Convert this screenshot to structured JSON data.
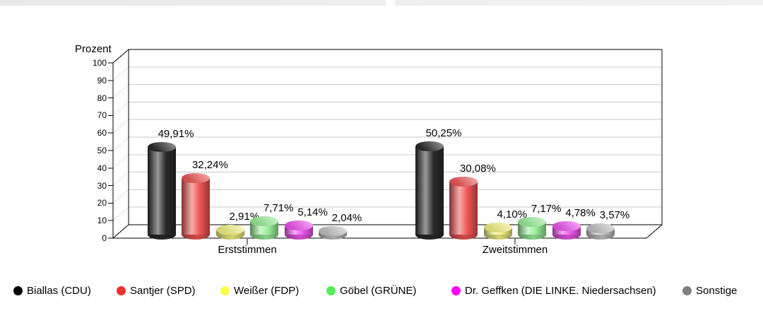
{
  "window": {
    "top_strip": {
      "visible": true
    }
  },
  "chart_data": {
    "type": "bar",
    "style": "3d-cylinder-grouped",
    "title": "",
    "ylabel": "Prozent",
    "xlabel": "",
    "ylim": [
      0,
      100
    ],
    "ytick_step": 10,
    "yticks": [
      "0",
      "10",
      "20",
      "30",
      "40",
      "50",
      "60",
      "70",
      "80",
      "90",
      "100"
    ],
    "grid": true,
    "legend_position": "bottom",
    "categories": [
      "Erststimmen",
      "Zweitstimmen"
    ],
    "series": [
      {
        "name": "Biallas (CDU)",
        "legend_color": "#000000",
        "bar_color": "#2a2a2a",
        "values": [
          49.91,
          50.25
        ],
        "value_labels": [
          "49,91%",
          "50,25%"
        ]
      },
      {
        "name": "Santjer (SPD)",
        "legend_color": "#ee3333",
        "bar_color": "#ee5555",
        "values": [
          32.24,
          30.08
        ],
        "value_labels": [
          "32,24%",
          "30,08%"
        ]
      },
      {
        "name": "Weißer (FDP)",
        "legend_color": "#ffff4d",
        "bar_color": "#f2f280",
        "values": [
          2.91,
          4.1
        ],
        "value_labels": [
          "2,91%",
          "4,10%"
        ]
      },
      {
        "name": "Göbel (GRÜNE)",
        "legend_color": "#55ee55",
        "bar_color": "#99ee99",
        "values": [
          7.71,
          7.17
        ],
        "value_labels": [
          "7,71%",
          "7,17%"
        ]
      },
      {
        "name": "Dr. Geffken (DIE LINKE. Niedersachsen)",
        "legend_color": "#ff00ff",
        "bar_color": "#ee55ee",
        "values": [
          5.14,
          4.78
        ],
        "value_labels": [
          "5,14%",
          "4,78%"
        ]
      },
      {
        "name": "Sonstige",
        "legend_color": "#808080",
        "bar_color": "#c2c2c2",
        "values": [
          2.04,
          3.57
        ],
        "value_labels": [
          "2,04%",
          "3,57%"
        ]
      }
    ]
  }
}
